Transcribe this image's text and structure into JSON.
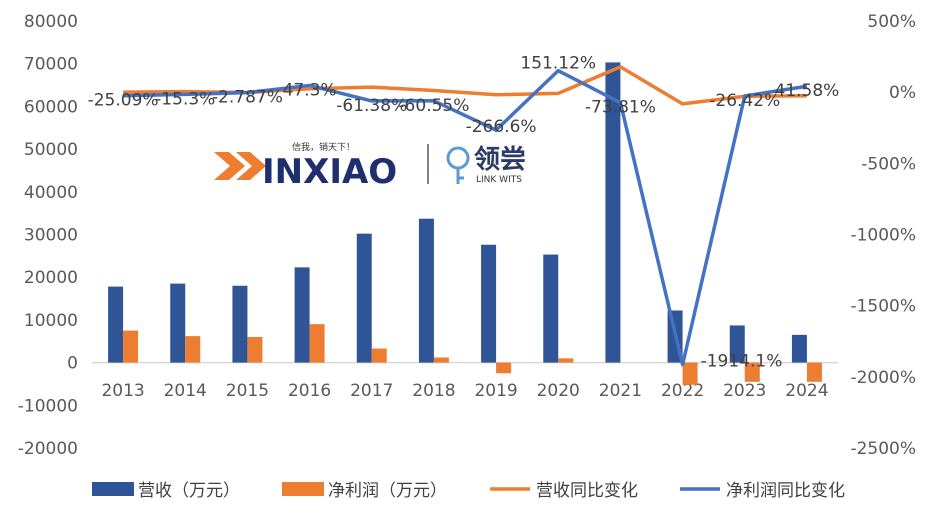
{
  "chart_data": {
    "type": "bar",
    "categories": [
      "2013",
      "2014",
      "2015",
      "2016",
      "2017",
      "2018",
      "2019",
      "2020",
      "2021",
      "2022",
      "2023",
      "2024"
    ],
    "series": [
      {
        "name": "营收（万元）",
        "kind": "bar",
        "axis": "left",
        "color": "#2f5597",
        "values": [
          17800,
          18500,
          18000,
          22300,
          30200,
          33700,
          27600,
          25300,
          70300,
          12200,
          8700,
          6500
        ]
      },
      {
        "name": "净利润（万元）",
        "kind": "bar",
        "axis": "left",
        "color": "#ed7d31",
        "values": [
          7500,
          6200,
          6000,
          9000,
          3300,
          1200,
          -2500,
          1000,
          0,
          -5200,
          -4500,
          -4500
        ]
      },
      {
        "name": "营收同比变化",
        "kind": "line",
        "axis": "right",
        "color": "#ed7d31",
        "values": [
          0,
          3.9,
          -2.7,
          23.9,
          35.4,
          11.6,
          -18.1,
          -8.3,
          177.9,
          -82.6,
          -28.7,
          -25.3
        ]
      },
      {
        "name": "净利润同比变化",
        "kind": "line",
        "axis": "right",
        "color": "#4472c4",
        "values": [
          -25.09,
          -15.3,
          -2.787,
          47.3,
          -61.38,
          -60.55,
          -266.6,
          151.12,
          -73.81,
          -1914.1,
          -26.42,
          41.58
        ]
      }
    ],
    "data_labels": [
      {
        "text": "-25.09%",
        "series": "净利润同比变化",
        "index": 0
      },
      {
        "text": "-15.3%",
        "series": "净利润同比变化",
        "index": 1
      },
      {
        "text": "-2.787%",
        "series": "净利润同比变化",
        "index": 2
      },
      {
        "text": "47.3%",
        "series": "净利润同比变化",
        "index": 3
      },
      {
        "text": "-61.38%",
        "series": "净利润同比变化",
        "index": 4
      },
      {
        "text": "-60.55%",
        "series": "净利润同比变化",
        "index": 5
      },
      {
        "text": "-266.6%",
        "series": "净利润同比变化",
        "index": 6
      },
      {
        "text": "151.12%",
        "series": "净利润同比变化",
        "index": 7
      },
      {
        "text": "-73.81%",
        "series": "净利润同比变化",
        "index": 8
      },
      {
        "text": "-1914.1%",
        "series": "净利润同比变化",
        "index": 9
      },
      {
        "text": "-26.42%",
        "series": "净利润同比变化",
        "index": 10
      },
      {
        "text": "41.58%",
        "series": "净利润同比变化",
        "index": 11
      }
    ],
    "y_left": {
      "min": -20000,
      "max": 80000,
      "ticks": [
        -20000,
        -10000,
        0,
        10000,
        20000,
        30000,
        40000,
        50000,
        60000,
        70000,
        80000
      ]
    },
    "y_right": {
      "min": -2500,
      "max": 500,
      "ticks": [
        "500%",
        "0%",
        "-500%",
        "-1000%",
        "-1500%",
        "-2000%",
        "-2500%"
      ],
      "tick_values": [
        500,
        0,
        -500,
        -1000,
        -1500,
        -2000,
        -2500
      ]
    },
    "title": "",
    "xlabel": "",
    "ylabel": "",
    "legend_position": "bottom",
    "grid": false
  },
  "watermark": {
    "brand": "INXIAO",
    "slogan": "信我，销天下！",
    "partner_cn": "领尝",
    "partner_en": "LINK WITS"
  }
}
